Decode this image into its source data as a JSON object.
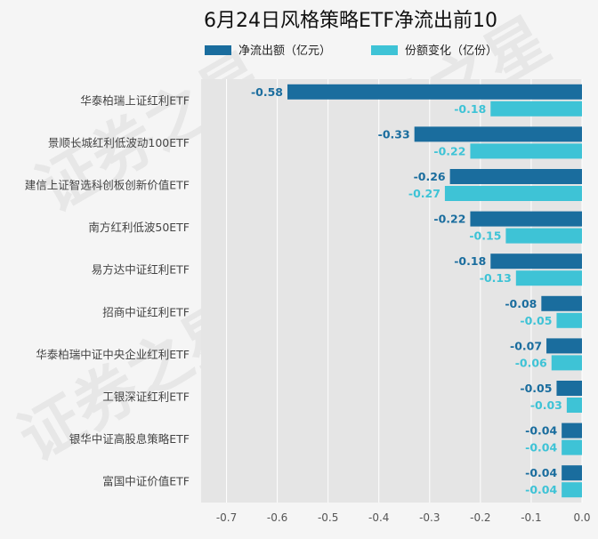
{
  "chart_data": {
    "type": "bar",
    "orientation": "horizontal",
    "title": "6月24日风格策略ETF净流出前10",
    "categories": [
      "华泰柏瑞上证红利ETF",
      "景顺长城红利低波动100ETF",
      "建信上证智选科创板创新价值ETF",
      "南方红利低波50ETF",
      "易方达中证红利ETF",
      "招商中证红利ETF",
      "华泰柏瑞中证中央企业红利ETF",
      "工银深证红利ETF",
      "银华中证高股息策略ETF",
      "富国中证价值ETF"
    ],
    "series": [
      {
        "name": "净流出额（亿元）",
        "color": "#1a6d9e",
        "values": [
          -0.58,
          -0.33,
          -0.26,
          -0.22,
          -0.18,
          -0.08,
          -0.07,
          -0.05,
          -0.04,
          -0.04
        ],
        "labels": [
          "-0.58",
          "-0.33",
          "-0.26",
          "-0.22",
          "-0.18",
          "-0.08",
          "-0.07",
          "-0.05",
          "-0.04",
          "-0.04"
        ]
      },
      {
        "name": "份额变化（亿份）",
        "color": "#3ec3d6",
        "values": [
          -0.18,
          -0.22,
          -0.27,
          -0.15,
          -0.13,
          -0.05,
          -0.06,
          -0.03,
          -0.04,
          -0.04
        ],
        "labels": [
          "-0.18",
          "-0.22",
          "-0.27",
          "-0.15",
          "-0.13",
          "-0.05",
          "-0.06",
          "-0.03",
          "-0.04",
          "-0.04"
        ]
      }
    ],
    "xlim": [
      -0.75,
      0
    ],
    "xticks": [
      -0.7,
      -0.6,
      -0.5,
      -0.4,
      -0.3,
      -0.2,
      -0.1,
      0.0
    ],
    "xtick_labels": [
      "-0.7",
      "-0.6",
      "-0.5",
      "-0.4",
      "-0.3",
      "-0.2",
      "-0.1",
      "0.0"
    ],
    "grid": true,
    "legend_position": "top",
    "plot_background": "#e5e5e5",
    "watermark": "证券之星"
  }
}
